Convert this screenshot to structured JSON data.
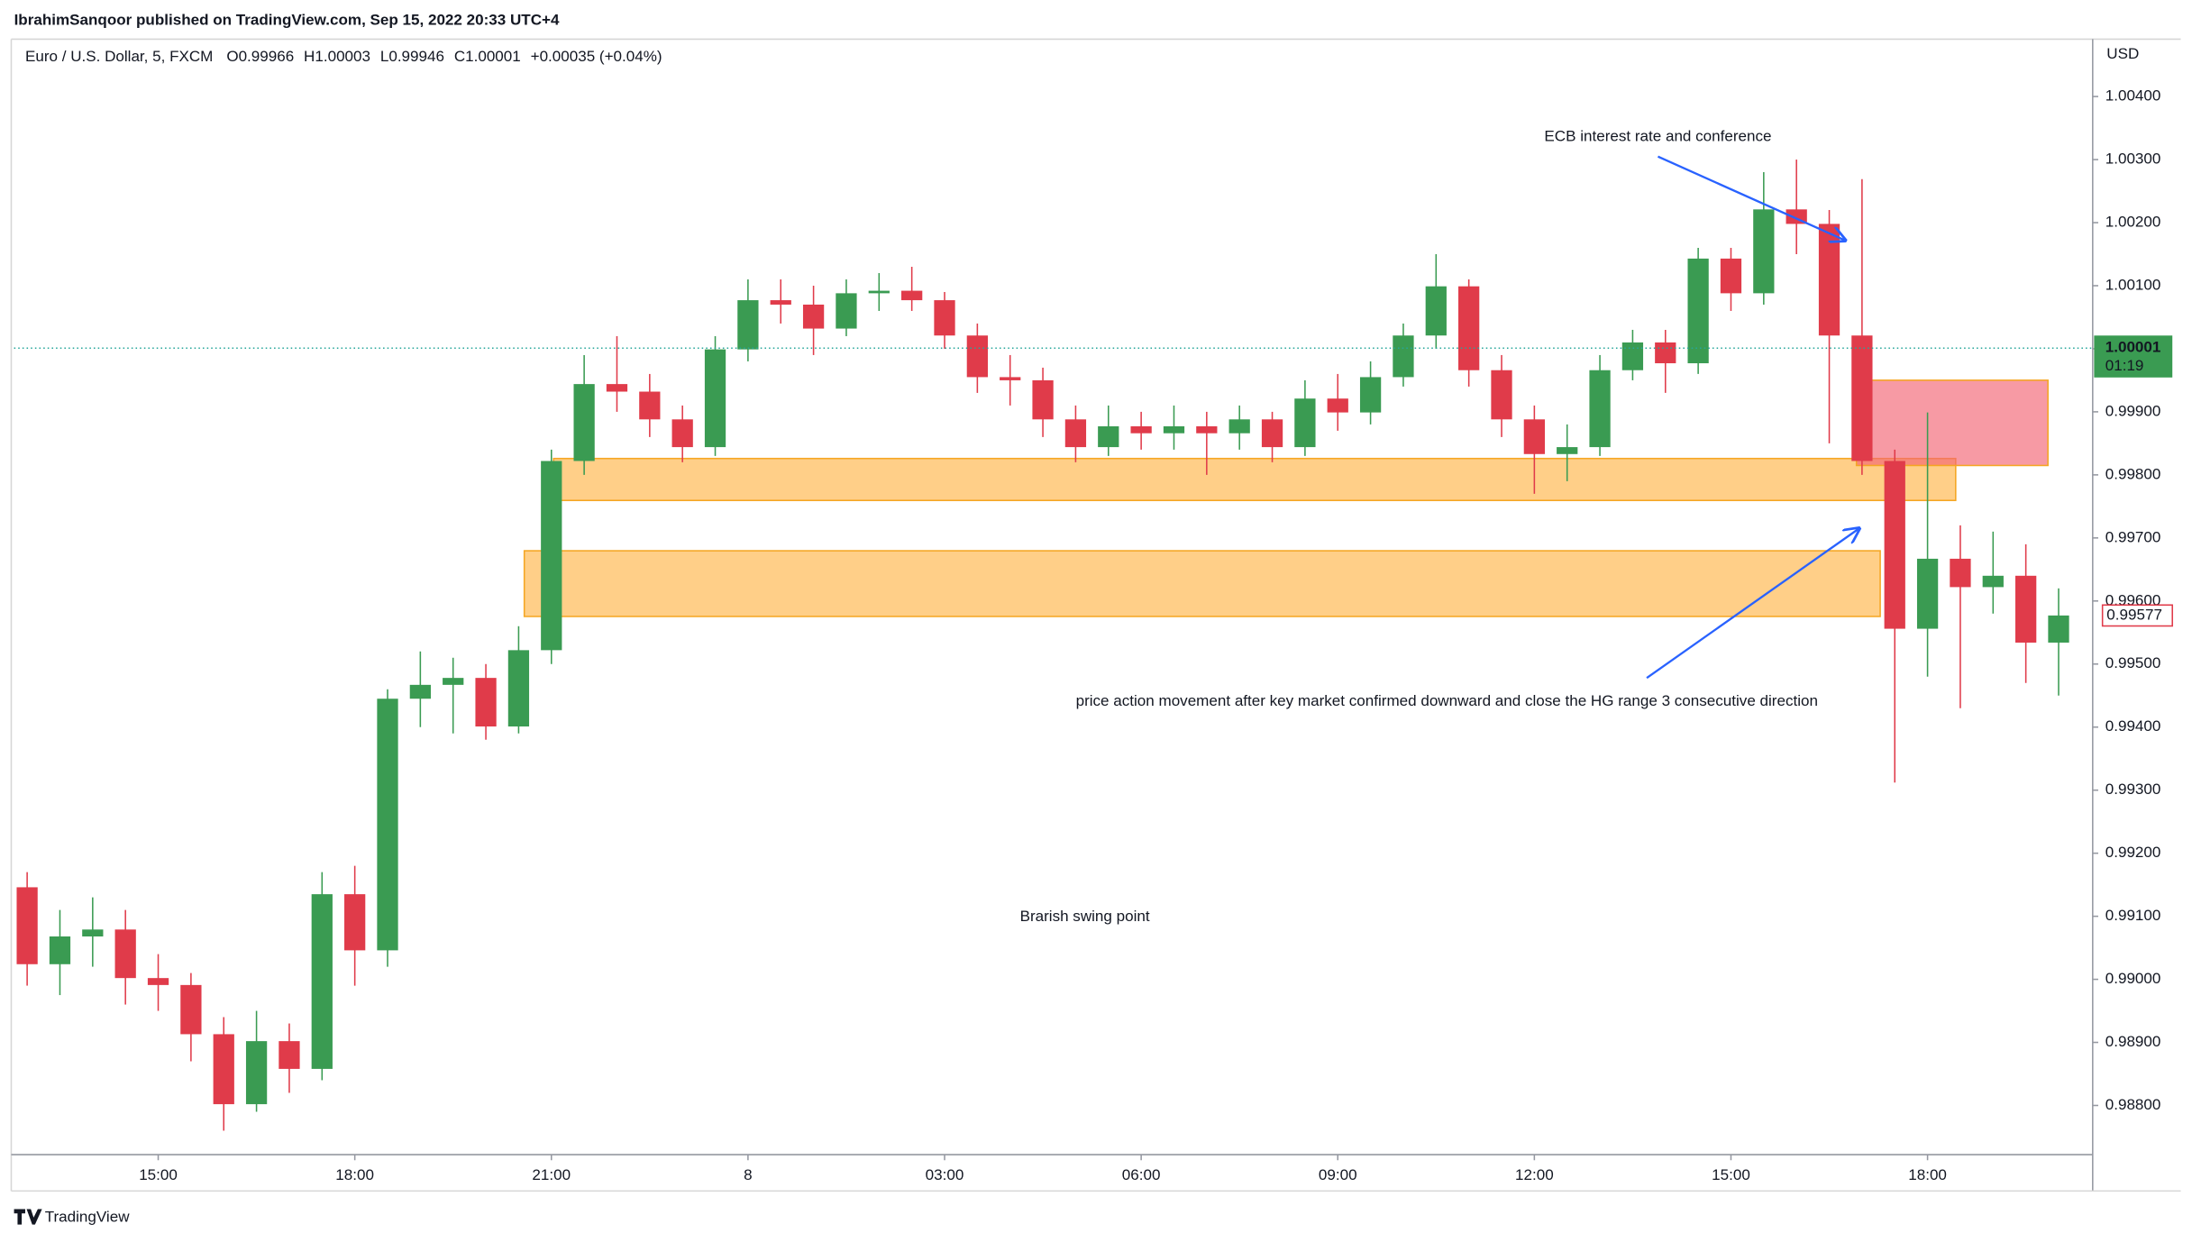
{
  "header": {
    "publisher_line": "IbrahimSanqoor published on TradingView.com, Sep 15, 2022 20:33 UTC+4",
    "symbol": "Euro / U.S. Dollar, 5, FXCM",
    "ohlc": [
      "O0.99966",
      "H1.00003",
      "L0.99946",
      "C1.00001",
      "+0.00035 (+0.04%)"
    ]
  },
  "chart_data": {
    "type": "candlestick",
    "x": [
      13,
      13.5,
      14,
      14.5,
      15,
      15.5,
      16,
      16.5,
      17,
      17.5,
      18,
      18.5,
      19,
      19.5,
      20,
      20.5,
      21,
      21.5,
      22,
      22.5,
      23,
      23.5,
      24,
      24.5,
      25,
      25.5,
      26,
      26.5,
      27,
      27.5,
      28,
      28.5,
      29,
      29.5,
      30,
      30.5,
      31,
      31.5,
      32,
      32.5,
      33,
      33.5,
      34,
      34.5,
      35,
      35.5,
      36,
      36.5,
      37,
      37.5,
      38,
      38.5,
      39,
      39.5,
      40,
      40.5,
      41,
      41.5,
      42,
      42.5,
      43,
      43.5,
      44
    ],
    "open": [
      0.99146,
      0.99024,
      0.99068,
      0.99079,
      0.99002,
      0.98991,
      0.98913,
      0.98802,
      0.98902,
      0.98858,
      0.99135,
      0.99046,
      0.99445,
      0.99467,
      0.99478,
      0.99401,
      0.99522,
      0.99822,
      0.99944,
      0.99932,
      0.99888,
      0.99844,
      0.99999,
      1.00077,
      1.0007,
      1.00032,
      1.00088,
      1.00092,
      1.00077,
      1.00021,
      0.99955,
      0.9995,
      0.99888,
      0.99844,
      0.99877,
      0.99866,
      0.99877,
      0.99866,
      0.99888,
      0.99844,
      0.99921,
      0.99899,
      0.99955,
      1.00021,
      1.00099,
      0.99966,
      0.99888,
      0.99833,
      0.99844,
      0.99966,
      1.0001,
      0.99977,
      1.00143,
      1.00088,
      1.00221,
      1.00198,
      1.00021,
      0.99822,
      0.99556,
      0.99667,
      0.99622,
      0.9964,
      0.99534
    ],
    "high": [
      0.9917,
      0.9911,
      0.9913,
      0.9911,
      0.9904,
      0.9901,
      0.9894,
      0.9895,
      0.9893,
      0.9917,
      0.9918,
      0.9946,
      0.9952,
      0.9951,
      0.995,
      0.9956,
      0.9984,
      0.9999,
      1.0002,
      0.9996,
      0.9991,
      1.0002,
      1.0011,
      1.0011,
      1.001,
      1.0011,
      1.0012,
      1.0013,
      1.0009,
      1.0004,
      0.9999,
      0.9997,
      0.9991,
      0.9991,
      0.999,
      0.9991,
      0.999,
      0.9991,
      0.999,
      0.9995,
      0.9996,
      0.9998,
      1.0004,
      1.0015,
      1.0011,
      0.9999,
      0.9991,
      0.9988,
      0.9999,
      1.0003,
      1.0003,
      1.0016,
      1.0016,
      1.0028,
      1.003,
      1.0022,
      1.00269,
      0.9984,
      0.99899,
      0.9972,
      0.9971,
      0.9969,
      0.9962
    ],
    "low": [
      0.9899,
      0.98975,
      0.9902,
      0.9896,
      0.9895,
      0.9887,
      0.9876,
      0.9879,
      0.9882,
      0.9884,
      0.9899,
      0.9902,
      0.994,
      0.9939,
      0.9938,
      0.9939,
      0.995,
      0.998,
      0.999,
      0.9986,
      0.9982,
      0.9983,
      0.9998,
      1.0004,
      0.9999,
      1.0002,
      1.0006,
      1.0006,
      1,
      0.9993,
      0.9991,
      0.9986,
      0.9982,
      0.9983,
      0.9984,
      0.9984,
      0.998,
      0.9984,
      0.9982,
      0.9983,
      0.9987,
      0.9988,
      0.9994,
      1,
      0.9994,
      0.9986,
      0.9977,
      0.9979,
      0.9983,
      0.9995,
      0.9993,
      0.9996,
      1.0006,
      1.0007,
      1.0015,
      0.9985,
      0.998,
      0.99312,
      0.9948,
      0.9943,
      0.9958,
      0.9947,
      0.9945
    ],
    "close": [
      0.99024,
      0.99068,
      0.99079,
      0.99002,
      0.98991,
      0.98913,
      0.98802,
      0.98902,
      0.98858,
      0.99135,
      0.99046,
      0.99445,
      0.99467,
      0.99478,
      0.99401,
      0.99522,
      0.99822,
      0.99944,
      0.99932,
      0.99888,
      0.99844,
      0.99999,
      1.00077,
      1.0007,
      1.00032,
      1.00088,
      1.00092,
      1.00077,
      1.00021,
      0.99955,
      0.9995,
      0.99888,
      0.99844,
      0.99877,
      0.99866,
      0.99877,
      0.99866,
      0.99888,
      0.99844,
      0.99921,
      0.99899,
      0.99955,
      1.00021,
      1.00099,
      0.99966,
      0.99888,
      0.99833,
      0.99844,
      0.99966,
      1.0001,
      0.99977,
      1.00143,
      1.00088,
      1.00221,
      1.00198,
      1.00021,
      0.99822,
      0.99556,
      0.99667,
      0.99622,
      0.9964,
      0.99534,
      0.99577
    ],
    "up_color": "#3a9b52",
    "down_color": "#e03b4a",
    "xlim": [
      12.8,
      44.52
    ],
    "xticks": [
      {
        "value": 15,
        "label": "15:00"
      },
      {
        "value": 18,
        "label": "18:00"
      },
      {
        "value": 21,
        "label": "21:00"
      },
      {
        "value": 24,
        "label": "8"
      },
      {
        "value": 27,
        "label": "03:00"
      },
      {
        "value": 30,
        "label": "06:00"
      },
      {
        "value": 33,
        "label": "09:00"
      },
      {
        "value": 36,
        "label": "12:00"
      },
      {
        "value": 39,
        "label": "15:00"
      },
      {
        "value": 42,
        "label": "18:00"
      }
    ],
    "ylim": [
      0.98722,
      1.00491
    ],
    "yticks": [
      {
        "value": 0.988,
        "label": "0.98800"
      },
      {
        "value": 0.989,
        "label": "0.98900"
      },
      {
        "value": 0.99,
        "label": "0.99000"
      },
      {
        "value": 0.991,
        "label": "0.99100"
      },
      {
        "value": 0.992,
        "label": "0.99200"
      },
      {
        "value": 0.993,
        "label": "0.99300"
      },
      {
        "value": 0.994,
        "label": "0.99400"
      },
      {
        "value": 0.995,
        "label": "0.99500"
      },
      {
        "value": 0.996,
        "label": "0.99600"
      },
      {
        "value": 0.997,
        "label": "0.99700"
      },
      {
        "value": 0.998,
        "label": "0.99800"
      },
      {
        "value": 0.999,
        "label": "0.99900"
      },
      {
        "value": 1.0,
        "label": "1.00000"
      },
      {
        "value": 1.001,
        "label": "1.00100"
      },
      {
        "value": 1.002,
        "label": "1.00200"
      },
      {
        "value": 1.003,
        "label": "1.00300"
      },
      {
        "value": 1.004,
        "label": "1.00400"
      }
    ],
    "y_axis_label": "USD",
    "price_line": 1.00001,
    "countdown": "01:19",
    "annotations": [
      "ECB interest rate and conference",
      "price action movement after key market confirmed downward and close the HG range 3 consecutive direction",
      "Brarish swing point"
    ]
  },
  "footer": {
    "brand": "TradingView"
  }
}
